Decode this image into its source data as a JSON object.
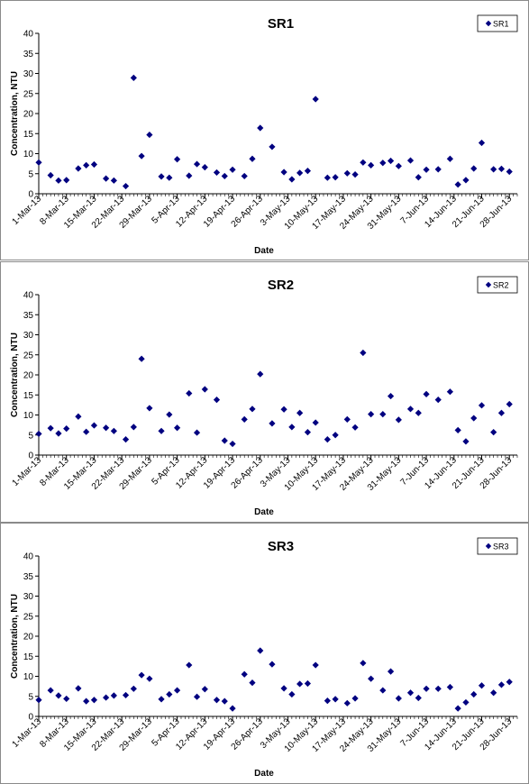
{
  "chart_data": [
    {
      "type": "scatter",
      "title": "SR1",
      "xlabel": "Date",
      "ylabel": "Concentration, NTU",
      "xlim": [
        "2013-03-01",
        "2013-06-30"
      ],
      "ylim": [
        0,
        40
      ],
      "y_ticks": [
        0,
        5,
        10,
        15,
        20,
        25,
        30,
        35,
        40
      ],
      "x_tick_labels": [
        "1-Mar-13",
        "8-Mar-13",
        "15-Mar-13",
        "22-Mar-13",
        "29-Mar-13",
        "5-Apr-13",
        "12-Apr-13",
        "19-Apr-13",
        "26-Apr-13",
        "3-May-13",
        "10-May-13",
        "17-May-13",
        "24-May-13",
        "31-May-13",
        "7-Jun-13",
        "14-Jun-13",
        "21-Jun-13",
        "28-Jun-13"
      ],
      "legend_position": "top-right",
      "grid": false,
      "marker_color": "#000080",
      "series": [
        {
          "name": "SR1",
          "points": [
            [
              "2013-03-01",
              7.8
            ],
            [
              "2013-03-04",
              4.6
            ],
            [
              "2013-03-06",
              3.3
            ],
            [
              "2013-03-08",
              3.4
            ],
            [
              "2013-03-11",
              6.3
            ],
            [
              "2013-03-13",
              7.1
            ],
            [
              "2013-03-15",
              7.3
            ],
            [
              "2013-03-18",
              3.8
            ],
            [
              "2013-03-20",
              3.3
            ],
            [
              "2013-03-23",
              1.9
            ],
            [
              "2013-03-25",
              28.9
            ],
            [
              "2013-03-27",
              9.4
            ],
            [
              "2013-03-29",
              14.7
            ],
            [
              "2013-04-01",
              4.3
            ],
            [
              "2013-04-03",
              4.0
            ],
            [
              "2013-04-05",
              8.6
            ],
            [
              "2013-04-08",
              4.5
            ],
            [
              "2013-04-10",
              7.4
            ],
            [
              "2013-04-12",
              6.6
            ],
            [
              "2013-04-15",
              5.3
            ],
            [
              "2013-04-17",
              4.4
            ],
            [
              "2013-04-19",
              6.0
            ],
            [
              "2013-04-22",
              4.4
            ],
            [
              "2013-04-24",
              8.7
            ],
            [
              "2013-04-26",
              16.4
            ],
            [
              "2013-04-29",
              11.7
            ],
            [
              "2013-05-02",
              5.4
            ],
            [
              "2013-05-04",
              3.6
            ],
            [
              "2013-05-06",
              5.2
            ],
            [
              "2013-05-08",
              5.7
            ],
            [
              "2013-05-10",
              23.6
            ],
            [
              "2013-05-13",
              4.0
            ],
            [
              "2013-05-15",
              4.1
            ],
            [
              "2013-05-18",
              5.1
            ],
            [
              "2013-05-20",
              4.8
            ],
            [
              "2013-05-22",
              7.8
            ],
            [
              "2013-05-24",
              7.1
            ],
            [
              "2013-05-27",
              7.7
            ],
            [
              "2013-05-29",
              8.2
            ],
            [
              "2013-05-31",
              6.9
            ],
            [
              "2013-06-03",
              8.3
            ],
            [
              "2013-06-05",
              4.1
            ],
            [
              "2013-06-07",
              6.0
            ],
            [
              "2013-06-10",
              6.1
            ],
            [
              "2013-06-13",
              8.7
            ],
            [
              "2013-06-15",
              2.3
            ],
            [
              "2013-06-17",
              3.4
            ],
            [
              "2013-06-19",
              6.3
            ],
            [
              "2013-06-21",
              12.7
            ],
            [
              "2013-06-24",
              6.1
            ],
            [
              "2013-06-26",
              6.2
            ],
            [
              "2013-06-28",
              5.5
            ]
          ]
        }
      ]
    },
    {
      "type": "scatter",
      "title": "SR2",
      "xlabel": "Date",
      "ylabel": "Concentration, NTU",
      "xlim": [
        "2013-03-01",
        "2013-06-30"
      ],
      "ylim": [
        0,
        40
      ],
      "y_ticks": [
        0,
        5,
        10,
        15,
        20,
        25,
        30,
        35,
        40
      ],
      "x_tick_labels": [
        "1-Mar-13",
        "8-Mar-13",
        "15-Mar-13",
        "22-Mar-13",
        "29-Mar-13",
        "5-Apr-13",
        "12-Apr-13",
        "19-Apr-13",
        "26-Apr-13",
        "3-May-13",
        "10-May-13",
        "17-May-13",
        "24-May-13",
        "31-May-13",
        "7-Jun-13",
        "14-Jun-13",
        "21-Jun-13",
        "28-Jun-13"
      ],
      "legend_position": "top-right",
      "grid": false,
      "marker_color": "#000080",
      "series": [
        {
          "name": "SR2",
          "points": [
            [
              "2013-03-01",
              5.3
            ],
            [
              "2013-03-04",
              6.7
            ],
            [
              "2013-03-06",
              5.4
            ],
            [
              "2013-03-08",
              6.6
            ],
            [
              "2013-03-11",
              9.6
            ],
            [
              "2013-03-13",
              5.8
            ],
            [
              "2013-03-15",
              7.4
            ],
            [
              "2013-03-18",
              6.8
            ],
            [
              "2013-03-20",
              6.0
            ],
            [
              "2013-03-23",
              3.9
            ],
            [
              "2013-03-25",
              7.0
            ],
            [
              "2013-03-27",
              24.0
            ],
            [
              "2013-03-29",
              11.7
            ],
            [
              "2013-04-01",
              6.0
            ],
            [
              "2013-04-03",
              10.1
            ],
            [
              "2013-04-05",
              6.8
            ],
            [
              "2013-04-08",
              15.4
            ],
            [
              "2013-04-10",
              5.6
            ],
            [
              "2013-04-12",
              16.4
            ],
            [
              "2013-04-15",
              13.8
            ],
            [
              "2013-04-17",
              3.6
            ],
            [
              "2013-04-19",
              2.8
            ],
            [
              "2013-04-22",
              8.9
            ],
            [
              "2013-04-24",
              11.5
            ],
            [
              "2013-04-26",
              20.2
            ],
            [
              "2013-04-29",
              7.9
            ],
            [
              "2013-05-02",
              11.4
            ],
            [
              "2013-05-04",
              7.0
            ],
            [
              "2013-05-06",
              10.5
            ],
            [
              "2013-05-08",
              5.7
            ],
            [
              "2013-05-10",
              8.1
            ],
            [
              "2013-05-13",
              3.9
            ],
            [
              "2013-05-15",
              5.0
            ],
            [
              "2013-05-18",
              8.9
            ],
            [
              "2013-05-20",
              6.9
            ],
            [
              "2013-05-22",
              25.5
            ],
            [
              "2013-05-24",
              10.2
            ],
            [
              "2013-05-27",
              10.2
            ],
            [
              "2013-05-29",
              14.7
            ],
            [
              "2013-05-31",
              8.8
            ],
            [
              "2013-06-03",
              11.5
            ],
            [
              "2013-06-05",
              10.5
            ],
            [
              "2013-06-07",
              15.2
            ],
            [
              "2013-06-10",
              13.8
            ],
            [
              "2013-06-13",
              15.8
            ],
            [
              "2013-06-15",
              6.2
            ],
            [
              "2013-06-17",
              3.4
            ],
            [
              "2013-06-19",
              9.2
            ],
            [
              "2013-06-21",
              12.4
            ],
            [
              "2013-06-24",
              5.7
            ],
            [
              "2013-06-26",
              10.5
            ],
            [
              "2013-06-28",
              12.7
            ]
          ]
        }
      ]
    },
    {
      "type": "scatter",
      "title": "SR3",
      "xlabel": "Date",
      "ylabel": "Concentration, NTU",
      "xlim": [
        "2013-03-01",
        "2013-06-30"
      ],
      "ylim": [
        0,
        40
      ],
      "y_ticks": [
        0,
        5,
        10,
        15,
        20,
        25,
        30,
        35,
        40
      ],
      "x_tick_labels": [
        "1-Mar-13",
        "8-Mar-13",
        "15-Mar-13",
        "22-Mar-13",
        "29-Mar-13",
        "5-Apr-13",
        "12-Apr-13",
        "19-Apr-13",
        "26-Apr-13",
        "3-May-13",
        "10-May-13",
        "17-May-13",
        "24-May-13",
        "31-May-13",
        "7-Jun-13",
        "14-Jun-13",
        "21-Jun-13",
        "28-Jun-13"
      ],
      "legend_position": "top-right",
      "grid": false,
      "marker_color": "#000080",
      "series": [
        {
          "name": "SR3",
          "points": [
            [
              "2013-03-01",
              4.1
            ],
            [
              "2013-03-04",
              6.5
            ],
            [
              "2013-03-06",
              5.2
            ],
            [
              "2013-03-08",
              4.4
            ],
            [
              "2013-03-11",
              7.0
            ],
            [
              "2013-03-13",
              3.8
            ],
            [
              "2013-03-15",
              4.1
            ],
            [
              "2013-03-18",
              4.7
            ],
            [
              "2013-03-20",
              5.2
            ],
            [
              "2013-03-23",
              5.3
            ],
            [
              "2013-03-25",
              6.9
            ],
            [
              "2013-03-27",
              10.3
            ],
            [
              "2013-03-29",
              9.4
            ],
            [
              "2013-04-01",
              4.3
            ],
            [
              "2013-04-03",
              5.5
            ],
            [
              "2013-04-05",
              6.5
            ],
            [
              "2013-04-08",
              12.8
            ],
            [
              "2013-04-10",
              4.9
            ],
            [
              "2013-04-12",
              6.8
            ],
            [
              "2013-04-15",
              4.1
            ],
            [
              "2013-04-17",
              3.8
            ],
            [
              "2013-04-19",
              2.0
            ],
            [
              "2013-04-22",
              10.5
            ],
            [
              "2013-04-24",
              8.4
            ],
            [
              "2013-04-26",
              16.4
            ],
            [
              "2013-04-29",
              13.0
            ],
            [
              "2013-05-02",
              7.0
            ],
            [
              "2013-05-04",
              5.5
            ],
            [
              "2013-05-06",
              8.1
            ],
            [
              "2013-05-08",
              8.2
            ],
            [
              "2013-05-10",
              12.8
            ],
            [
              "2013-05-13",
              3.9
            ],
            [
              "2013-05-15",
              4.3
            ],
            [
              "2013-05-18",
              3.3
            ],
            [
              "2013-05-20",
              4.5
            ],
            [
              "2013-05-22",
              13.3
            ],
            [
              "2013-05-24",
              9.4
            ],
            [
              "2013-05-27",
              6.5
            ],
            [
              "2013-05-29",
              11.2
            ],
            [
              "2013-05-31",
              4.5
            ],
            [
              "2013-06-03",
              5.9
            ],
            [
              "2013-06-05",
              4.6
            ],
            [
              "2013-06-07",
              6.9
            ],
            [
              "2013-06-10",
              6.9
            ],
            [
              "2013-06-13",
              7.3
            ],
            [
              "2013-06-15",
              2.0
            ],
            [
              "2013-06-17",
              3.5
            ],
            [
              "2013-06-19",
              5.5
            ],
            [
              "2013-06-21",
              7.7
            ],
            [
              "2013-06-24",
              5.9
            ],
            [
              "2013-06-26",
              7.9
            ],
            [
              "2013-06-28",
              8.6
            ]
          ]
        }
      ]
    }
  ]
}
